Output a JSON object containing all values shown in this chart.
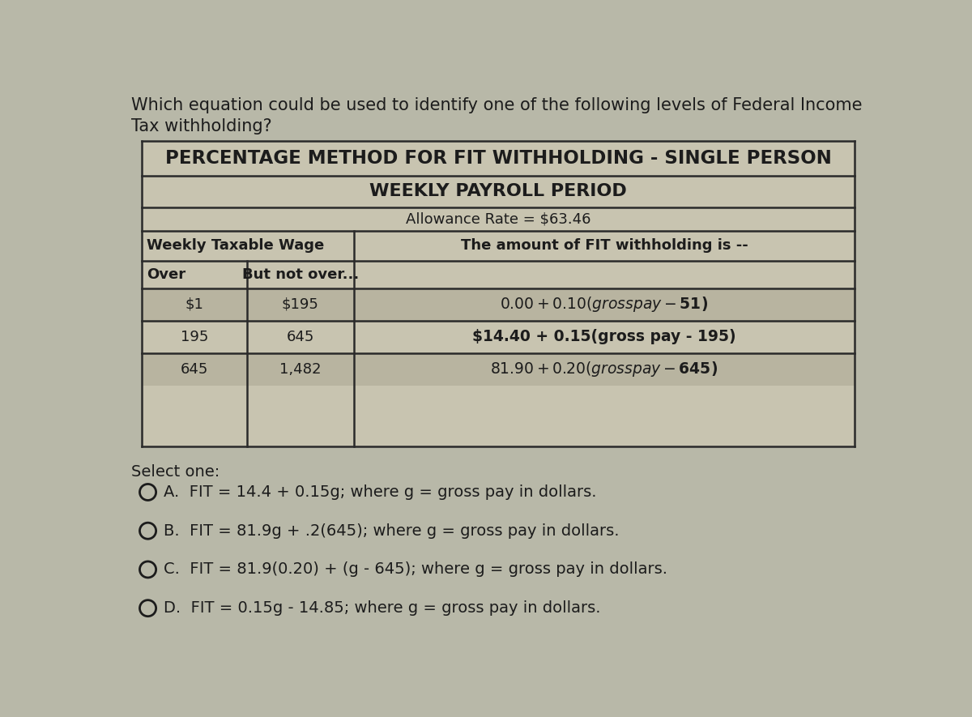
{
  "bg_color": "#b8b8a8",
  "question_text_line1": "Which equation could be used to identify one of the following levels of Federal Income",
  "question_text_line2": "Tax withholding?",
  "table_title1": "PERCENTAGE METHOD FOR FIT WITHHOLDING - SINGLE PERSON",
  "table_title2": "WEEKLY PAYROLL PERIOD",
  "table_subtitle": "Allowance Rate = $63.46",
  "col_header_left": "Weekly Taxable Wage",
  "col_header_right": "The amount of FIT withholding is --",
  "sub_col1": "Over",
  "sub_col2": "But not over...",
  "rows": [
    {
      "over": "$1",
      "but_not": "$195",
      "formula": "$0.00 + 0.10(gross pay - $51)"
    },
    {
      "over": "195",
      "but_not": "645",
      "formula": "$14.40 + 0.15(gross pay - 195)"
    },
    {
      "over": "645",
      "but_not": "1,482",
      "formula": "$81.90 + 0.20(gross pay - $645)"
    }
  ],
  "select_one": "Select one:",
  "options": [
    {
      "letter": "A.",
      "equation": "FIT = 14.4 + 0.15g;",
      "rest": " where g = gross pay in dollars."
    },
    {
      "letter": "B.",
      "equation": "FIT = 81.9g + .2(645);",
      "rest": " where g = gross pay in dollars."
    },
    {
      "letter": "C.",
      "equation": "FIT = 81.9(0.20) + (g - 645);",
      "rest": " where g = gross pay in dollars."
    },
    {
      "letter": "D.",
      "equation": "FIT = 0.15g - 14.85;",
      "rest": " where g = gross pay in dollars."
    }
  ],
  "text_color": "#1c1c1c",
  "table_border_color": "#2a2a2a",
  "table_bg": "#c8c4b0",
  "row_bg_alt": "#b8b4a0"
}
